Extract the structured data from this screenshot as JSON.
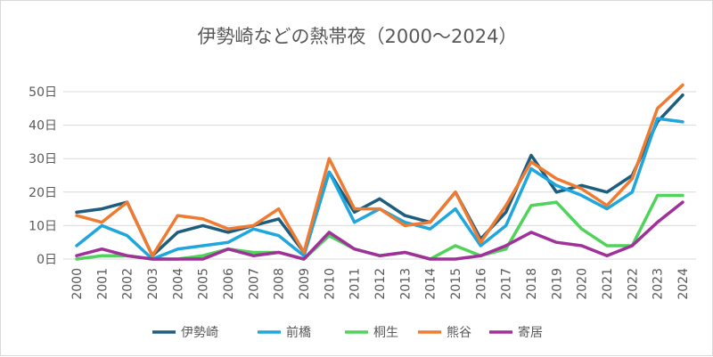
{
  "chart_data": {
    "type": "line",
    "title": "伊勢崎などの熱帯夜（2000～2024）",
    "xlabel": "",
    "ylabel": "",
    "ylim": [
      0,
      50
    ],
    "y_ticks": [
      "0日",
      "10日",
      "20日",
      "30日",
      "40日",
      "50日"
    ],
    "grid": true,
    "legend_position": "bottom",
    "x": [
      "2000",
      "2001",
      "2002",
      "2003",
      "2004",
      "2005",
      "2006",
      "2007",
      "2008",
      "2009",
      "2010",
      "2011",
      "2012",
      "2013",
      "2014",
      "2015",
      "2016",
      "2017",
      "2018",
      "2019",
      "2020",
      "2021",
      "2022",
      "2023",
      "2024"
    ],
    "series": [
      {
        "name": "伊勢崎",
        "color": "#1d5d7e",
        "values": [
          14,
          15,
          17,
          1,
          8,
          10,
          8,
          10,
          12,
          2,
          26,
          14,
          18,
          13,
          11,
          20,
          6,
          14,
          31,
          20,
          22,
          20,
          25,
          41,
          49
        ]
      },
      {
        "name": "前橋",
        "color": "#1ea6dd",
        "values": [
          4,
          10,
          7,
          0,
          3,
          4,
          5,
          9,
          7,
          1,
          26,
          11,
          15,
          11,
          9,
          15,
          4,
          10,
          27,
          22,
          19,
          15,
          20,
          42,
          41
        ]
      },
      {
        "name": "桐生",
        "color": "#4fd35a",
        "values": [
          0,
          1,
          1,
          0,
          0,
          1,
          3,
          2,
          2,
          0,
          7,
          3,
          1,
          2,
          0,
          4,
          1,
          3,
          16,
          17,
          9,
          4,
          4,
          19,
          19
        ]
      },
      {
        "name": "熊谷",
        "color": "#f07a30",
        "values": [
          13,
          11,
          17,
          1,
          13,
          12,
          9,
          10,
          15,
          2,
          30,
          15,
          15,
          10,
          11,
          20,
          5,
          16,
          29,
          24,
          21,
          16,
          24,
          45,
          52
        ]
      },
      {
        "name": "寄居",
        "color": "#a0309a",
        "values": [
          1,
          3,
          1,
          0,
          0,
          0,
          3,
          1,
          2,
          0,
          8,
          3,
          1,
          2,
          0,
          0,
          1,
          4,
          8,
          5,
          4,
          1,
          4,
          11,
          17
        ]
      }
    ]
  }
}
